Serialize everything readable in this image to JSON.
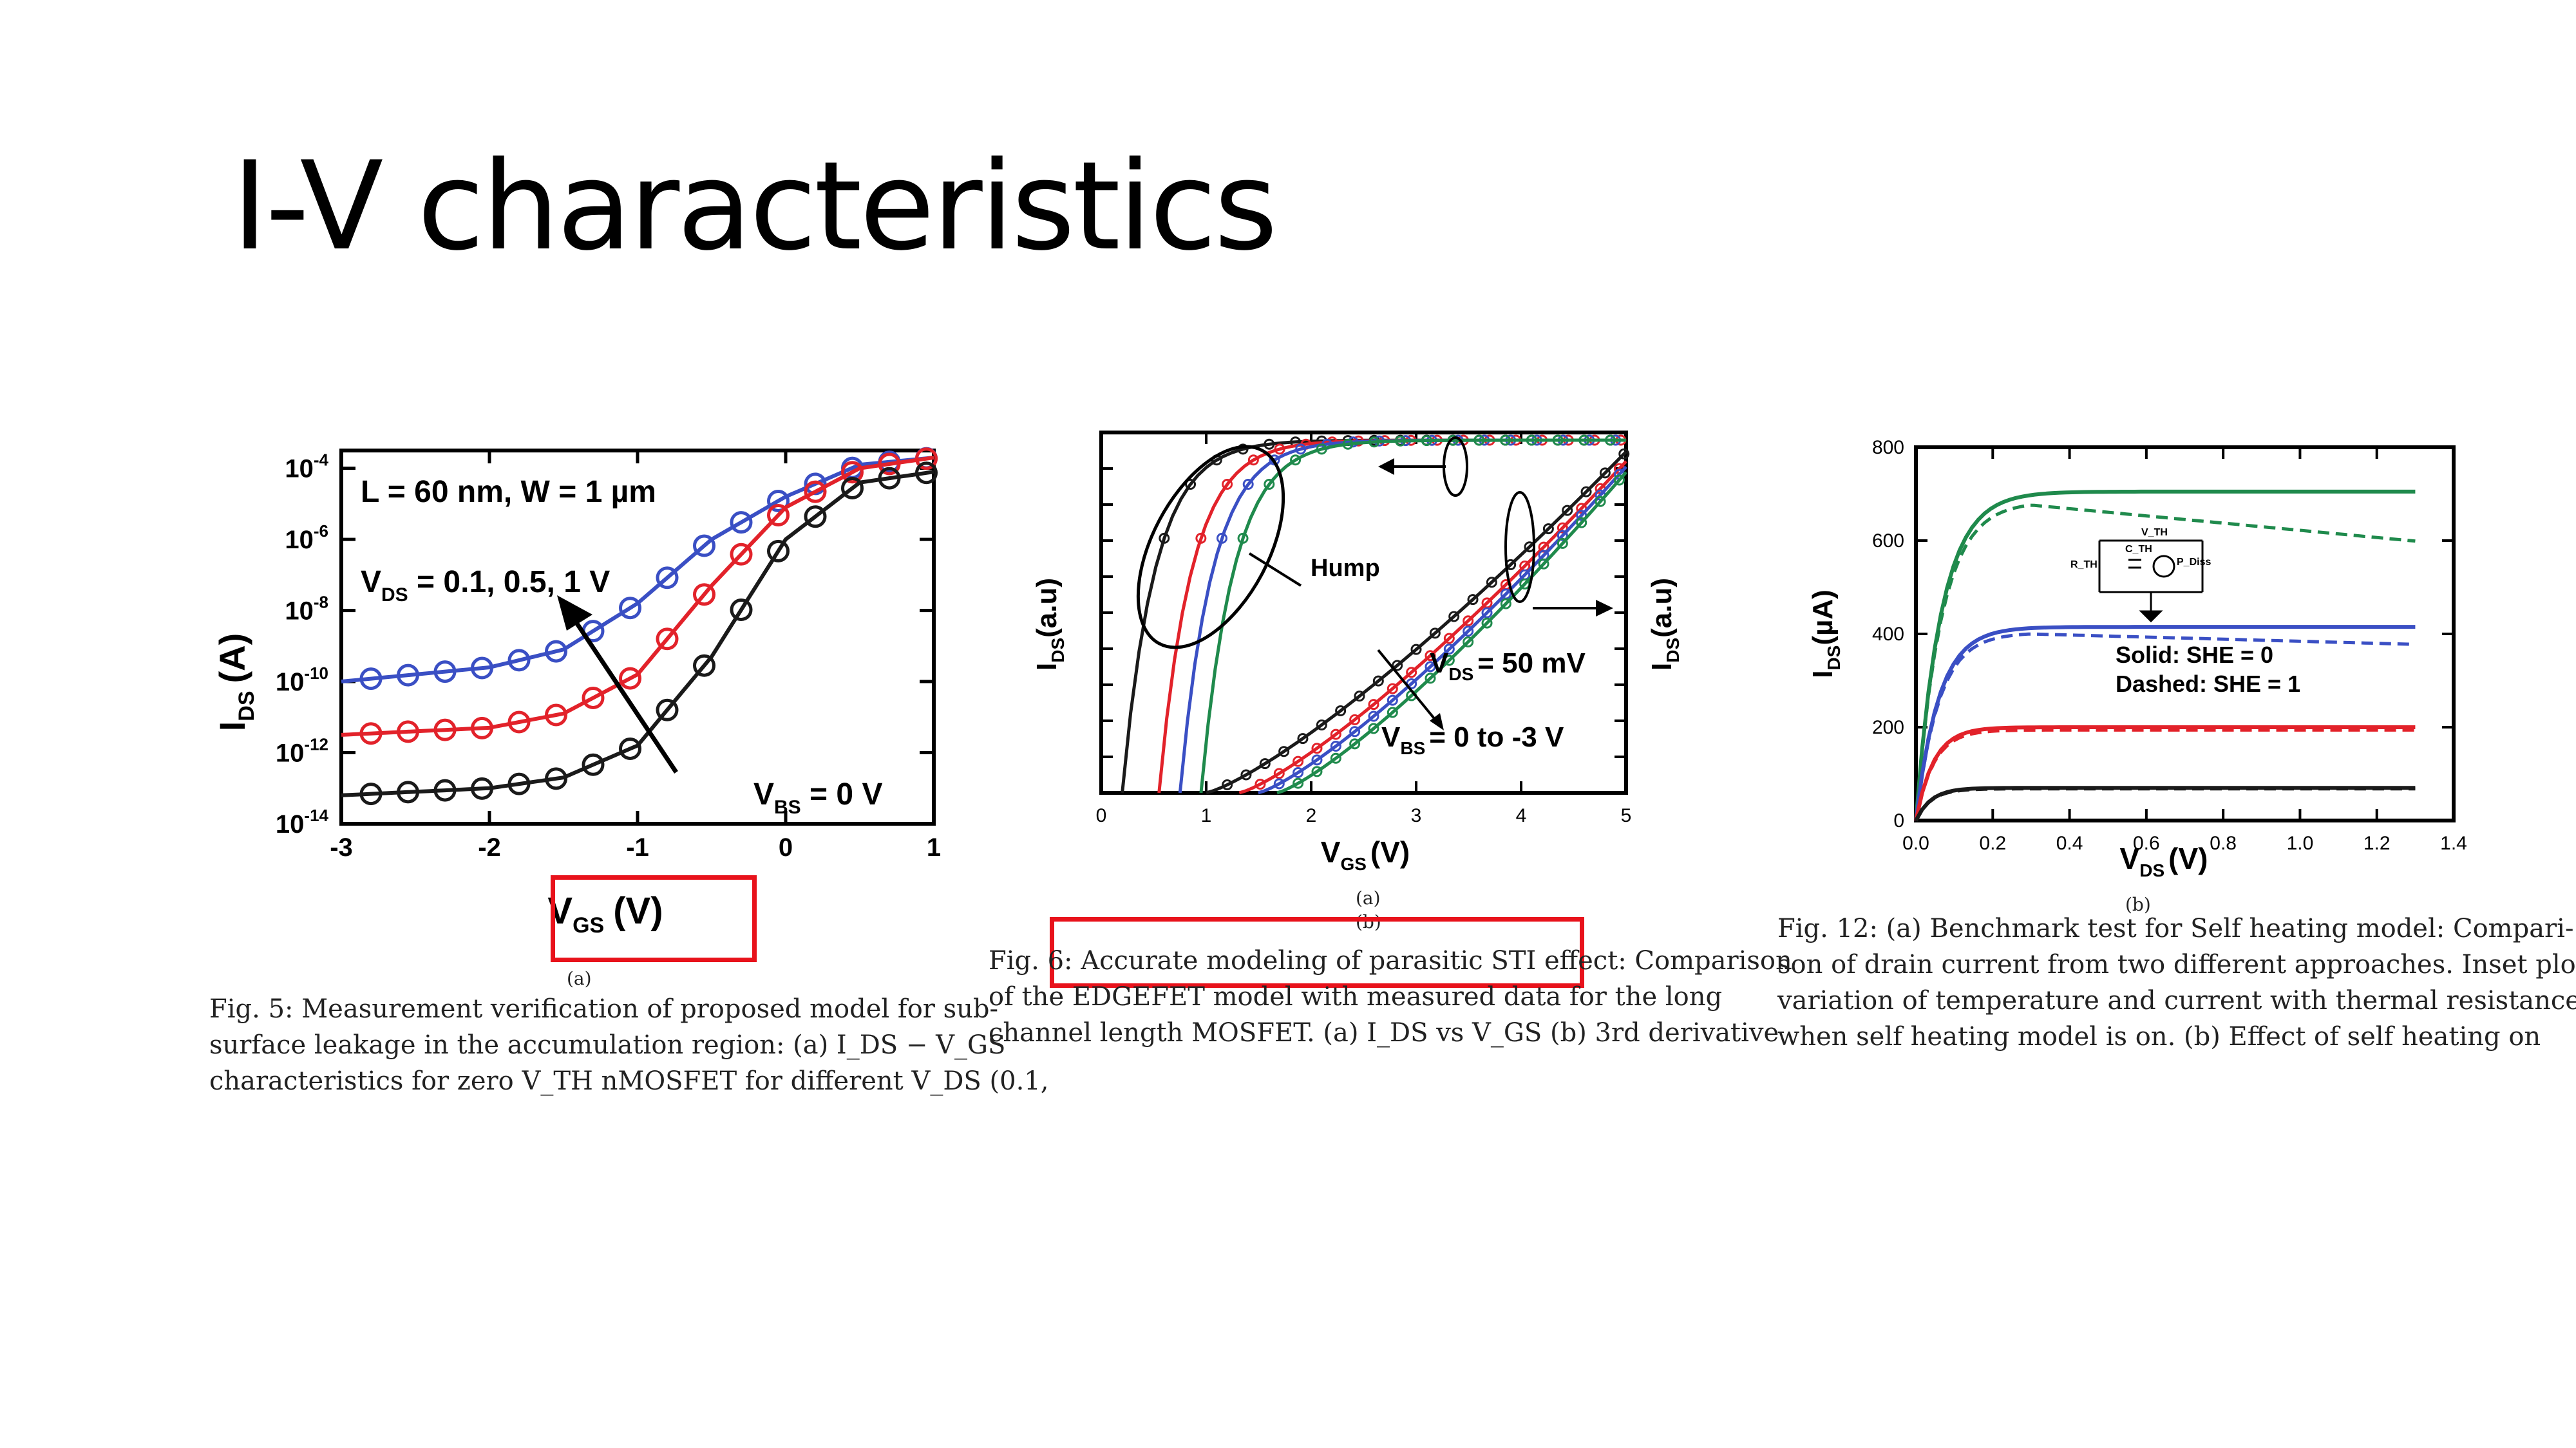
{
  "slide": {
    "title": "I-V characteristics"
  },
  "chart_data": [
    {
      "type": "line",
      "subfig_label": "(a)",
      "xlabel": "V",
      "xlabel_sub": "GS",
      "xlabel_unit": "(V)",
      "ylabel": "I",
      "ylabel_sub": "DS",
      "ylabel_unit": "(A)",
      "xlim": [
        -3,
        1
      ],
      "ylim_log10": [
        -14,
        -3.5
      ],
      "yscale": "log",
      "xticks": [
        "-3",
        "-2",
        "-1",
        "0",
        "1"
      ],
      "yticks": [
        {
          "base": "10",
          "exp": "-4",
          "log": -4
        },
        {
          "base": "10",
          "exp": "-6",
          "log": -6
        },
        {
          "base": "10",
          "exp": "-8",
          "log": -8
        },
        {
          "base": "10",
          "exp": "-10",
          "log": -10
        },
        {
          "base": "10",
          "exp": "-12",
          "log": -12
        },
        {
          "base": "10",
          "exp": "-14",
          "log": -14
        }
      ],
      "annotations": {
        "dims": "L = 60 nm, W = 1 µm",
        "vds_main": "V",
        "vds_sub": "DS",
        "vds_values": " = 0.1, 0.5, 1 V",
        "vbs_main": "V",
        "vbs_sub": "BS",
        "vbs_values": " = 0 V"
      },
      "series": [
        {
          "color": "#3a4fc4",
          "x": [
            -3,
            -2.5,
            -2,
            -1.5,
            -1,
            -0.5,
            0,
            0.5,
            1
          ],
          "log_y": [
            -10,
            -9.8,
            -9.6,
            -9.1,
            -7.8,
            -6.0,
            -4.8,
            -3.9,
            -3.7
          ]
        },
        {
          "color": "#e2222a",
          "x": [
            -3,
            -2.5,
            -2,
            -1.5,
            -1,
            -0.5,
            0,
            0.5,
            1
          ],
          "log_y": [
            -11.5,
            -11.4,
            -11.3,
            -10.9,
            -9.8,
            -7.3,
            -5.1,
            -4.0,
            -3.7
          ]
        },
        {
          "color": "#1a1a1a",
          "x": [
            -3,
            -2.5,
            -2,
            -1.5,
            -1,
            -0.5,
            0,
            0.5,
            1
          ],
          "log_y": [
            -13.2,
            -13.1,
            -13.0,
            -12.7,
            -11.8,
            -9.3,
            -6.0,
            -4.4,
            -4.1
          ]
        }
      ],
      "caption": [
        "Fig. 5: Measurement verification of proposed model for sub-",
        "surface leakage in the accumulation region: (a) I_DS − V_GS",
        "characteristics for zero V_TH nMOSFET for different V_DS (0.1,"
      ]
    },
    {
      "type": "line",
      "subfig_label": "(a)",
      "subfig_label_2": "(b)",
      "xlabel": "V",
      "xlabel_sub": "GS",
      "xlabel_unit": "(V)",
      "ylabel_left": "I",
      "ylabel_left_sub": "DS",
      "ylabel_left_unit": "(a.u)",
      "ylabel_right": "I",
      "ylabel_right_sub": "DS",
      "ylabel_right_unit": "(a.u)",
      "xlim": [
        0,
        5
      ],
      "xticks": [
        "0",
        "1",
        "2",
        "3",
        "4",
        "5"
      ],
      "annotations": {
        "hump": "Hump",
        "vds_main": "V",
        "vds_sub": "DS",
        "vds_values": "= 50 mV",
        "vbs_main": "V",
        "vbs_sub": "BS",
        "vbs_values": "= 0 to -3 V"
      },
      "series": [
        {
          "color": "#1a1a1a",
          "shift": 0.0
        },
        {
          "color": "#e2222a",
          "shift": 0.35
        },
        {
          "color": "#3a4fc4",
          "shift": 0.55
        },
        {
          "color": "#1f8a4c",
          "shift": 0.75
        }
      ],
      "caption": [
        "Fig. 6: Accurate modeling of parasitic STI effect: Comparison",
        "of the EDGEFET model with measured data for the long",
        "channel length MOSFET. (a) I_DS vs V_GS (b) 3rd derivative"
      ]
    },
    {
      "type": "line",
      "subfig_label": "(b)",
      "xlabel": "V",
      "xlabel_sub": "DS",
      "xlabel_unit": "(V)",
      "ylabel": "I",
      "ylabel_sub": "DS",
      "ylabel_unit": "(µA)",
      "xlim": [
        0,
        1.4
      ],
      "ylim": [
        0,
        800
      ],
      "xticks": [
        "0.0",
        "0.2",
        "0.4",
        "0.6",
        "0.8",
        "1.0",
        "1.2",
        "1.4"
      ],
      "yticks": [
        "0",
        "200",
        "400",
        "600",
        "800"
      ],
      "legend_solid": "Solid: SHE = 0",
      "legend_dashed": "Dashed: SHE = 1",
      "inset_labels": {
        "vth": "V_TH",
        "rth": "R_TH",
        "cth": "C_TH",
        "pdiss": "P_Diss"
      },
      "series": [
        {
          "color": "#1f8a4c",
          "sat": 705,
          "sat_she": 620,
          "vsat": 0.2
        },
        {
          "color": "#3a4fc4",
          "sat": 415,
          "sat_she": 390,
          "vsat": 0.18
        },
        {
          "color": "#e2222a",
          "sat": 200,
          "sat_she": 200,
          "vsat": 0.14
        },
        {
          "color": "#1a1a1a",
          "sat": 70,
          "sat_she": 70,
          "vsat": 0.12
        }
      ],
      "caption": [
        "Fig. 12: (a) Benchmark test for Self heating model: Compari-",
        "son of drain current from two different approaches. Inset plot",
        "variation of temperature and current with thermal resistance,",
        "when self heating model is on. (b) Effect of self heating on"
      ]
    }
  ],
  "colors": {
    "highlight": "#e8121b"
  }
}
